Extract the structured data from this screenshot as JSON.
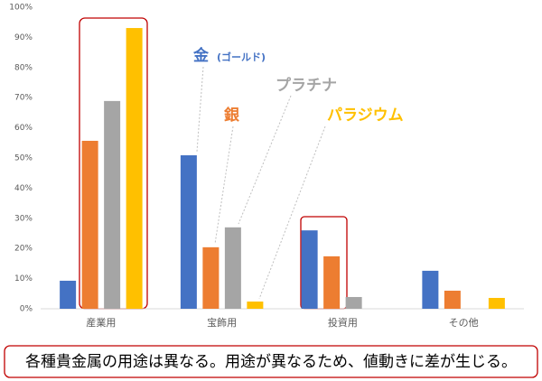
{
  "chart_data": {
    "type": "bar",
    "categories": [
      "産業用",
      "宝飾用",
      "投資用",
      "その他"
    ],
    "series": [
      {
        "name": "金",
        "color": "#4472c4",
        "values": [
          9.3,
          50.9,
          26,
          12.6
        ]
      },
      {
        "name": "銀",
        "color": "#ed7d31",
        "values": [
          55.7,
          20.4,
          17.4,
          6
        ]
      },
      {
        "name": "プラチナ",
        "color": "#a5a5a5",
        "values": [
          68.9,
          27,
          3.9,
          null
        ]
      },
      {
        "name": "パラジウム",
        "color": "#ffc000",
        "values": [
          93.1,
          2.4,
          null,
          3.6
        ]
      }
    ],
    "annotations": [
      "(ゴールド)"
    ],
    "caption": "各種貴金属の用途は異なる。用途が異なるため、値動きに差が生じる。",
    "ylim": [
      0,
      100
    ],
    "yticks": [
      {
        "value": 0,
        "label": "0%"
      },
      {
        "value": 10,
        "label": "10%"
      },
      {
        "value": 20,
        "label": "20%"
      },
      {
        "value": 30,
        "label": "30%"
      },
      {
        "value": 40,
        "label": "40%"
      },
      {
        "value": 50,
        "label": "50%"
      },
      {
        "value": 60,
        "label": "60%"
      },
      {
        "value": 70,
        "label": "70%"
      },
      {
        "value": 80,
        "label": "80%"
      },
      {
        "value": 90,
        "label": "90%"
      },
      {
        "value": 100,
        "label": "100%"
      }
    ],
    "grid": false
  }
}
